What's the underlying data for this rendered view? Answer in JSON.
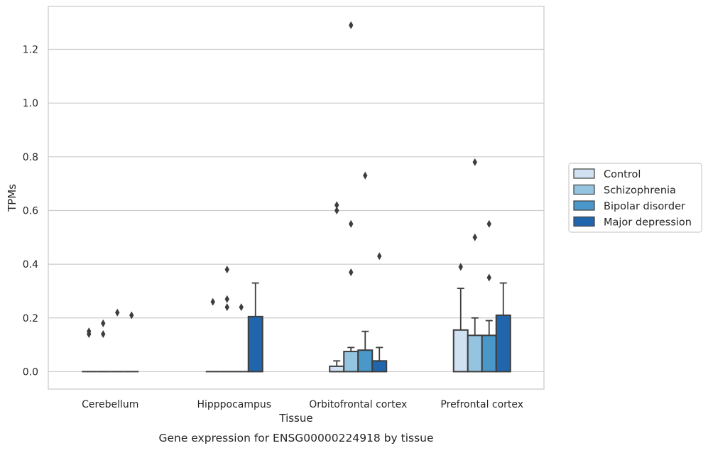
{
  "chart_data": {
    "type": "bar",
    "caption": "Gene expression for ENSG00000224918 by tissue",
    "xlabel": "Tissue",
    "ylabel": "TPMs",
    "ylim": [
      -0.065,
      1.36
    ],
    "yticks": [
      0.0,
      0.2,
      0.4,
      0.6,
      0.8,
      1.0,
      1.2
    ],
    "ytick_labels": [
      "0.0",
      "0.2",
      "0.4",
      "0.6",
      "0.8",
      "1.0",
      "1.2"
    ],
    "grid": "horizontal",
    "legend_position": "right",
    "categories": [
      "Cerebellum",
      "Hipppocampus",
      "Orbitofrontal cortex",
      "Prefrontal cortex"
    ],
    "series": [
      {
        "name": "Control",
        "color": "#d0e1f2",
        "values": [
          0.0,
          0.0,
          0.02,
          0.155
        ],
        "whisker_top": [
          0.0,
          0.0,
          0.04,
          0.31
        ],
        "outliers": [
          [
            0.14,
            0.15
          ],
          [
            0.26
          ],
          [
            0.6,
            0.62
          ],
          [
            0.39
          ]
        ]
      },
      {
        "name": "Schizophrenia",
        "color": "#94c4df",
        "values": [
          0.0,
          0.0,
          0.075,
          0.135
        ],
        "whisker_top": [
          0.0,
          0.0,
          0.09,
          0.2
        ],
        "outliers": [
          [
            0.14,
            0.18
          ],
          [
            0.24,
            0.27,
            0.38
          ],
          [
            0.37,
            0.55,
            1.29
          ],
          [
            0.5,
            0.78
          ]
        ]
      },
      {
        "name": "Bipolar disorder",
        "color": "#4a98c9",
        "values": [
          0.0,
          0.0,
          0.08,
          0.135
        ],
        "whisker_top": [
          0.0,
          0.0,
          0.15,
          0.19
        ],
        "outliers": [
          [
            0.22
          ],
          [
            0.24
          ],
          [
            0.73
          ],
          [
            0.35,
            0.55
          ]
        ]
      },
      {
        "name": "Major depression",
        "color": "#2166ac",
        "values": [
          0.0,
          0.205,
          0.04,
          0.21
        ],
        "whisker_top": [
          0.0,
          0.33,
          0.09,
          0.33
        ],
        "outliers": [
          [
            0.21
          ],
          [],
          [
            0.43
          ],
          []
        ]
      }
    ]
  }
}
